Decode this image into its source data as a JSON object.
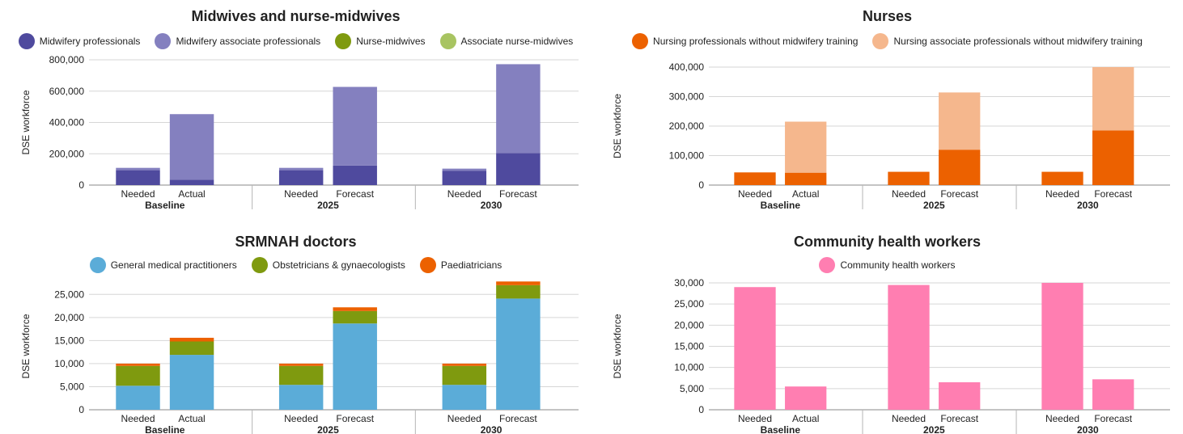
{
  "chart_data": [
    {
      "type": "bar",
      "stacked": true,
      "title": "Midwives and nurse-midwives",
      "ylabel": "DSE workforce",
      "ylim": [
        0,
        800000
      ],
      "yticks": [
        0,
        200000,
        400000,
        600000,
        800000
      ],
      "yticks_labels": [
        "0",
        "200,000",
        "400,000",
        "600,000",
        "800,000"
      ],
      "groups": [
        {
          "label": "Baseline",
          "categories": [
            "Needed",
            "Actual"
          ]
        },
        {
          "label": "2025",
          "categories": [
            "Needed",
            "Forecast"
          ]
        },
        {
          "label": "2030",
          "categories": [
            "Needed",
            "Forecast"
          ]
        }
      ],
      "series": [
        {
          "name": "Midwifery professionals",
          "color": "#4f4a9e",
          "values": [
            95000,
            35000,
            95000,
            125000,
            92000,
            205000
          ]
        },
        {
          "name": "Midwifery associate professionals",
          "color": "#8480bf",
          "values": [
            15000,
            418000,
            15000,
            502000,
            13000,
            567000
          ]
        },
        {
          "name": "Nurse-midwives",
          "color": "#7f9a0f",
          "values": [
            0,
            0,
            0,
            0,
            0,
            0
          ]
        },
        {
          "name": "Associate nurse-midwives",
          "color": "#a8c461",
          "values": [
            0,
            0,
            0,
            0,
            0,
            0
          ]
        }
      ],
      "grid": true,
      "legend_position": "top"
    },
    {
      "type": "bar",
      "stacked": true,
      "title": "Nurses",
      "ylabel": "DSE workforce",
      "ylim": [
        0,
        400000
      ],
      "yticks": [
        0,
        100000,
        200000,
        300000,
        400000
      ],
      "yticks_labels": [
        "0",
        "100,000",
        "200,000",
        "300,000",
        "400,000"
      ],
      "groups": [
        {
          "label": "Baseline",
          "categories": [
            "Needed",
            "Actual"
          ]
        },
        {
          "label": "2025",
          "categories": [
            "Needed",
            "Forecast"
          ]
        },
        {
          "label": "2030",
          "categories": [
            "Needed",
            "Forecast"
          ]
        }
      ],
      "series": [
        {
          "name": "Nursing professionals without midwifery training",
          "color": "#ec6100",
          "values": [
            43000,
            42000,
            45000,
            120000,
            45000,
            185000
          ]
        },
        {
          "name": "Nursing associate professionals without midwifery training",
          "color": "#f5b78d",
          "values": [
            0,
            173000,
            0,
            194000,
            0,
            215000
          ]
        }
      ],
      "grid": true,
      "legend_position": "top"
    },
    {
      "type": "bar",
      "stacked": true,
      "title": "SRMNAH doctors",
      "ylabel": "DSE workforce",
      "ylim": [
        0,
        27500
      ],
      "yticks": [
        0,
        5000,
        10000,
        15000,
        20000,
        25000
      ],
      "yticks_labels": [
        "0",
        "5,000",
        "10,000",
        "15,000",
        "20,000",
        "25,000"
      ],
      "groups": [
        {
          "label": "Baseline",
          "categories": [
            "Needed",
            "Actual"
          ]
        },
        {
          "label": "2025",
          "categories": [
            "Needed",
            "Forecast"
          ]
        },
        {
          "label": "2030",
          "categories": [
            "Needed",
            "Forecast"
          ]
        }
      ],
      "series": [
        {
          "name": "General medical practitioners",
          "color": "#5bacd8",
          "values": [
            5200,
            11900,
            5400,
            18700,
            5400,
            24100
          ]
        },
        {
          "name": "Obstetricians & gynaecologists",
          "color": "#7f9a0f",
          "values": [
            4300,
            2900,
            4100,
            2700,
            4100,
            2900
          ]
        },
        {
          "name": "Paediatricians",
          "color": "#ec6100",
          "values": [
            500,
            800,
            500,
            800,
            500,
            800
          ]
        }
      ],
      "grid": true,
      "legend_position": "top"
    },
    {
      "type": "bar",
      "stacked": true,
      "title": "Community health workers",
      "ylabel": "DSE workforce",
      "ylim": [
        0,
        30000
      ],
      "yticks": [
        0,
        5000,
        10000,
        15000,
        20000,
        25000,
        30000
      ],
      "yticks_labels": [
        "0",
        "5,000",
        "10,000",
        "15,000",
        "20,000",
        "25,000",
        "30,000"
      ],
      "groups": [
        {
          "label": "Baseline",
          "categories": [
            "Needed",
            "Actual"
          ]
        },
        {
          "label": "2025",
          "categories": [
            "Needed",
            "Forecast"
          ]
        },
        {
          "label": "2030",
          "categories": [
            "Needed",
            "Forecast"
          ]
        }
      ],
      "series": [
        {
          "name": "Community health workers",
          "color": "#ff7eb1",
          "values": [
            29000,
            5500,
            29500,
            6500,
            30000,
            7200
          ]
        }
      ],
      "grid": true,
      "legend_position": "top"
    }
  ]
}
